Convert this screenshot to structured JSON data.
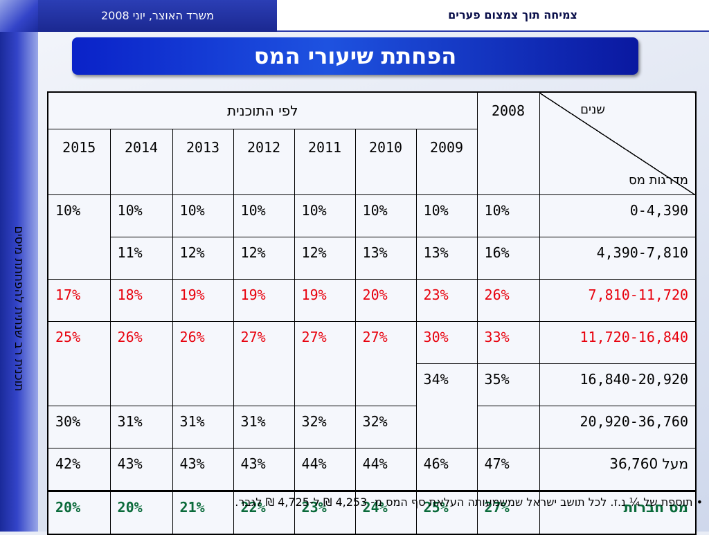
{
  "header": {
    "ministry": "משרד האוצר, יוני  2008",
    "subtitle": "צמיחה תוך צמצום פערים"
  },
  "sidebar": {
    "text": "תוכנית רב שנתית להפחתת מיסים"
  },
  "title": "הפחתת שיעורי המס",
  "table": {
    "diag_years": "שנים",
    "diag_brackets": "מדרגות מס",
    "col_2008": "2008",
    "plan_header": "לפי התוכנית",
    "plan_years": [
      "2009",
      "2010",
      "2011",
      "2012",
      "2013",
      "2014",
      "2015"
    ],
    "rows": [
      {
        "bracket": "0-4,390",
        "v": [
          "10%",
          "10%",
          "10%",
          "10%",
          "10%",
          "10%",
          "10%",
          "10%"
        ]
      },
      {
        "bracket": "4,390-7,810",
        "v": [
          "16%",
          "13%",
          "13%",
          "12%",
          "12%",
          "12%",
          "11%"
        ]
      },
      {
        "bracket": "7,810-11,720",
        "v": [
          "26%",
          "23%",
          "20%",
          "19%",
          "19%",
          "19%",
          "18%",
          "17%"
        ]
      },
      {
        "bracket": "11,720-16,840",
        "v": [
          "33%",
          "30%",
          "27%",
          "27%",
          "27%",
          "26%",
          "26%",
          "25%"
        ]
      },
      {
        "bracket": "16,840-20,920",
        "v": [
          "35%",
          "34%"
        ]
      },
      {
        "bracket": "20,920-36,760",
        "v": [
          "32%",
          "32%",
          "31%",
          "31%",
          "31%",
          "30%"
        ]
      },
      {
        "bracket": "מעל 36,760",
        "v": [
          "47%",
          "46%",
          "44%",
          "44%",
          "43%",
          "43%",
          "43%",
          "42%"
        ]
      },
      {
        "bracket": "מס חברות",
        "v": [
          "27%",
          "25%",
          "24%",
          "23%",
          "22%",
          "21%",
          "20%",
          "20%"
        ]
      }
    ]
  },
  "footnote": "• תוספת של ¼ נ.ז. לכל תושב ישראל שמשמעותה העלאת סף המס מ- 4,253 ₪ ל-4,725 ₪ לגבר."
}
